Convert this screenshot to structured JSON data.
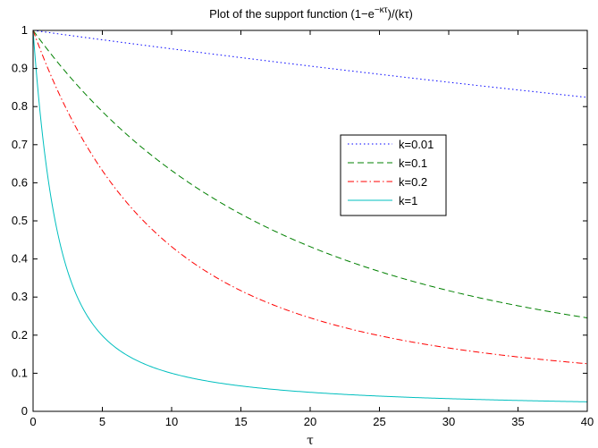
{
  "chart_data": {
    "type": "line",
    "title": {
      "prefix": "Plot of the support function (1−e",
      "superscript": "−κτ",
      "suffix": ")/(kτ)"
    },
    "xlabel": "τ",
    "ylabel": "",
    "xlim": [
      0,
      40
    ],
    "ylim": [
      0,
      1
    ],
    "xticks": [
      0,
      5,
      10,
      15,
      20,
      25,
      30,
      35,
      40
    ],
    "yticks": [
      0,
      0.1,
      0.2,
      0.3,
      0.4,
      0.5,
      0.6,
      0.7,
      0.8,
      0.9,
      1
    ],
    "grid": false,
    "legend_position": "center-right",
    "x": [
      0,
      2.5,
      5,
      7.5,
      10,
      12.5,
      15,
      17.5,
      20,
      22.5,
      25,
      27.5,
      30,
      32.5,
      35,
      37.5,
      40
    ],
    "series": [
      {
        "name": "k=0.01",
        "color": "#0000ff",
        "dash": "dotted",
        "values": [
          1,
          0.988,
          0.975,
          0.963,
          0.952,
          0.94,
          0.929,
          0.918,
          0.906,
          0.896,
          0.885,
          0.874,
          0.864,
          0.854,
          0.844,
          0.834,
          0.824
        ]
      },
      {
        "name": "k=0.1",
        "color": "#008000",
        "dash": "dashed",
        "values": [
          1,
          0.885,
          0.787,
          0.703,
          0.632,
          0.571,
          0.518,
          0.473,
          0.432,
          0.397,
          0.367,
          0.339,
          0.317,
          0.295,
          0.277,
          0.261,
          0.245
        ]
      },
      {
        "name": "k=0.2",
        "color": "#ff0000",
        "dash": "dashdot",
        "values": [
          1,
          0.787,
          0.632,
          0.518,
          0.432,
          0.367,
          0.317,
          0.277,
          0.245,
          0.219,
          0.198,
          0.181,
          0.166,
          0.154,
          0.143,
          0.133,
          0.125
        ]
      },
      {
        "name": "k=1",
        "color": "#00bfbf",
        "dash": "solid",
        "values": [
          1,
          0.367,
          0.199,
          0.133,
          0.1,
          0.08,
          0.067,
          0.057,
          0.05,
          0.044,
          0.04,
          0.036,
          0.033,
          0.031,
          0.029,
          0.027,
          0.025
        ]
      }
    ]
  }
}
